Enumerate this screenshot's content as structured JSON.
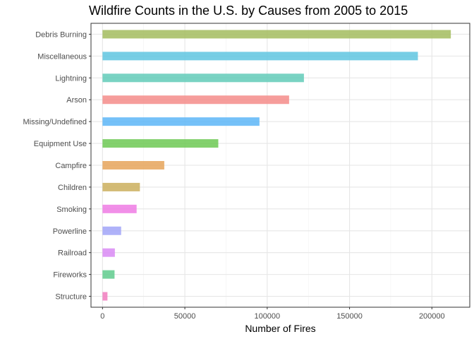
{
  "chart_data": {
    "type": "bar",
    "orientation": "horizontal",
    "title": "Wildfire Counts in the U.S. by Causes from 2005 to 2015",
    "xlabel": "Number of Fires",
    "ylabel": "",
    "categories": [
      "Debris Burning",
      "Miscellaneous",
      "Lightning",
      "Arson",
      "Missing/Undefined",
      "Equipment Use",
      "Campfire",
      "Children",
      "Smoking",
      "Powerline",
      "Railroad",
      "Fireworks",
      "Structure"
    ],
    "values": [
      211500,
      191500,
      122300,
      113300,
      95300,
      70300,
      37500,
      22700,
      20700,
      11300,
      7500,
      7300,
      3000
    ],
    "colors": [
      "#A3BC5E",
      "#5FC5E0",
      "#62CBB8",
      "#F48C8A",
      "#5DB6F7",
      "#6DC954",
      "#E6A45A",
      "#CBAF5D",
      "#EF7BE4",
      "#A1A5F8",
      "#D98AF5",
      "#5FCB8D",
      "#F17DBE"
    ],
    "xlim": [
      -7000,
      223000
    ],
    "xticks": [
      0,
      50000,
      100000,
      150000,
      200000
    ],
    "xtick_labels": [
      "0",
      "50000",
      "100000",
      "150000",
      "200000"
    ],
    "grid": true,
    "legend": "none"
  }
}
